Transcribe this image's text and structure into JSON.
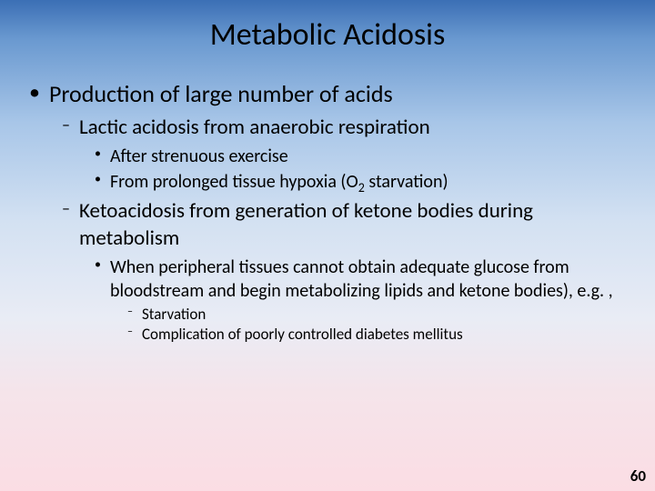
{
  "title": {
    "text": "Metabolic Acidosis",
    "fontsize": 34,
    "color": "#000000"
  },
  "page_number": "60",
  "colors": {
    "text": "#000000",
    "gradient_top": "#3b6fb5",
    "gradient_mid": "#d3e1f2",
    "gradient_bottom": "#fbdde4"
  },
  "bullets": {
    "lvl1_glyph": "•",
    "lvl2_glyph": "–",
    "lvl3_glyph": "•",
    "lvl4_glyph": "–"
  },
  "content": {
    "l1_a": "Production of large number of acids",
    "l2_a": "Lactic acidosis from anaerobic respiration",
    "l3_a": "After strenuous exercise",
    "l3_b_pre": "From prolonged tissue hypoxia (O",
    "l3_b_sub": "2",
    "l3_b_post": " starvation)",
    "l2_b": "Ketoacidosis from generation of ketone bodies during metabolism",
    "l3_c": "When peripheral tissues cannot obtain adequate glucose from bloodstream and begin metabolizing lipids and ketone bodies), e.g. ,",
    "l4_a": "Starvation",
    "l4_b": "Complication of poorly controlled diabetes mellitus"
  },
  "fontsize": {
    "title": 34,
    "l1": 26,
    "l2": 23,
    "l3": 20,
    "l4": 17,
    "pagenum": 17
  }
}
